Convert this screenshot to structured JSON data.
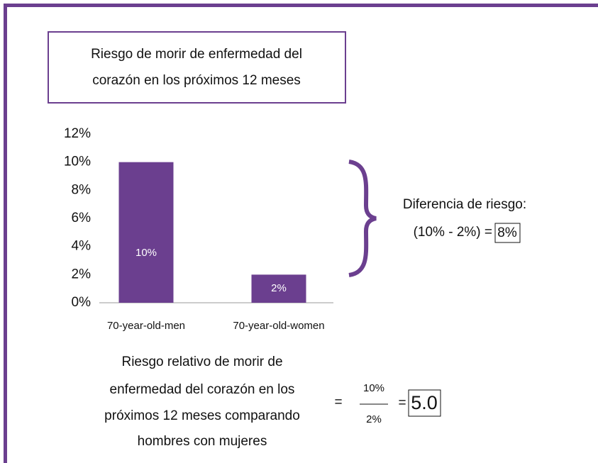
{
  "chart_data": {
    "type": "bar",
    "title": "Riesgo de morir de enfermedad del corazón en los próximos 12 meses",
    "categories": [
      "70-year-old-men",
      "70-year-old-women"
    ],
    "values": [
      10,
      2
    ],
    "value_labels": [
      "10%",
      "2%"
    ],
    "color": "#6b3f8f",
    "ylim": [
      0,
      12
    ],
    "yticks": [
      {
        "value": 0,
        "label": "0%"
      },
      {
        "value": 2,
        "label": "2%"
      },
      {
        "value": 4,
        "label": "4%"
      },
      {
        "value": 6,
        "label": "6%"
      },
      {
        "value": 8,
        "label": "8%"
      },
      {
        "value": 10,
        "label": "10%"
      },
      {
        "value": 12,
        "label": "12%"
      }
    ],
    "grid": false,
    "difference": {
      "label": "Diferencia de riesgo:",
      "formula": "(10% - 2%) =",
      "result": "8%"
    },
    "relative_risk": {
      "label": [
        "Riesgo relativo de morir de",
        "enfermedad del corazón en los",
        "próximos 12 meses comparando",
        "hombres con mujeres"
      ],
      "equals": "=",
      "numerator": "10%",
      "denominator": "2%",
      "result": "5.0"
    }
  }
}
